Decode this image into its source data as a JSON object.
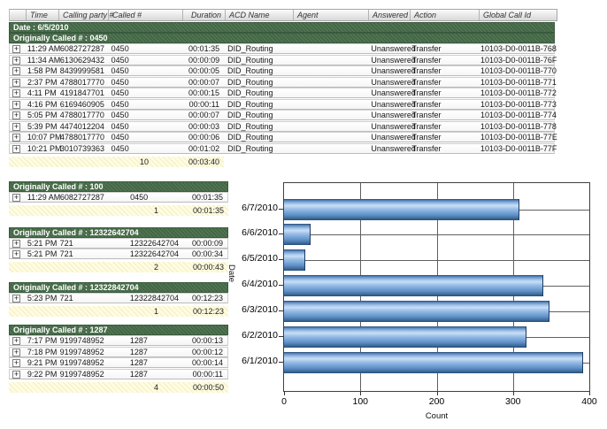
{
  "report": {
    "columns": [
      {
        "key": "expand",
        "label": ""
      },
      {
        "key": "time",
        "label": "Time"
      },
      {
        "key": "calling",
        "label": "Calling party #"
      },
      {
        "key": "called",
        "label": "Called #"
      },
      {
        "key": "duration",
        "label": "Duration"
      },
      {
        "key": "acd",
        "label": "ACD Name"
      },
      {
        "key": "agent",
        "label": "Agent"
      },
      {
        "key": "answered",
        "label": "Answered"
      },
      {
        "key": "action",
        "label": "Action"
      },
      {
        "key": "global",
        "label": "Global Call Id"
      }
    ],
    "date_header": "Date : 6/5/2010",
    "expand_glyph": "+",
    "groups": [
      {
        "header": "Originally Called # : 0450",
        "layout": "wide",
        "rows": [
          [
            "11:29 AM",
            "6082727287",
            "0450",
            "00:01:35",
            "DID_Routing",
            "",
            "Unanswered",
            "Transfer",
            "10103-D0-0011B-768"
          ],
          [
            "11:34 AM",
            "6130629432",
            "0450",
            "00:00:09",
            "DID_Routing",
            "",
            "Unanswered",
            "Transfer",
            "10103-D0-0011B-76F"
          ],
          [
            "1:58 PM",
            "8439999581",
            "0450",
            "00:00:05",
            "DID_Routing",
            "",
            "Unanswered",
            "Transfer",
            "10103-D0-0011B-770"
          ],
          [
            "2:37 PM",
            "4788017770",
            "0450",
            "00:00:07",
            "DID_Routing",
            "",
            "Unanswered",
            "Transfer",
            "10103-D0-0011B-771"
          ],
          [
            "4:11 PM",
            "4191847701",
            "0450",
            "00:00:15",
            "DID_Routing",
            "",
            "Unanswered",
            "Transfer",
            "10103-D0-0011B-772"
          ],
          [
            "4:16 PM",
            "6169460905",
            "0450",
            "00:00:11",
            "DID_Routing",
            "",
            "Unanswered",
            "Transfer",
            "10103-D0-0011B-773"
          ],
          [
            "5:05 PM",
            "4788017770",
            "0450",
            "00:00:07",
            "DID_Routing",
            "",
            "Unanswered",
            "Transfer",
            "10103-D0-0011B-774"
          ],
          [
            "5:39 PM",
            "4474012204",
            "0450",
            "00:00:03",
            "DID_Routing",
            "",
            "Unanswered",
            "Transfer",
            "10103-D0-0011B-778"
          ],
          [
            "10:07 PM",
            "4788017770",
            "0450",
            "00:00:06",
            "DID_Routing",
            "",
            "Unanswered",
            "Transfer",
            "10103-D0-0011B-77E"
          ],
          [
            "10:21 PM",
            "3010739363",
            "0450",
            "00:01:02",
            "DID_Routing",
            "",
            "Unanswered",
            "Transfer",
            "10103-D0-0011B-77F"
          ]
        ],
        "summary": {
          "count": "10",
          "duration": "00:03:40"
        }
      },
      {
        "header": "Originally Called # : 100",
        "layout": "narrow",
        "rows": [
          [
            "11:29 AM",
            "6082727287",
            "0450",
            "00:01:35"
          ]
        ],
        "summary": {
          "count": "1",
          "duration": "00:01:35"
        }
      },
      {
        "header": "Originally Called # : 12322642704",
        "layout": "narrow",
        "rows": [
          [
            "5:21 PM",
            "721",
            "12322642704",
            "00:00:09"
          ],
          [
            "5:21 PM",
            "721",
            "12322642704",
            "00:00:34"
          ]
        ],
        "summary": {
          "count": "2",
          "duration": "00:00:43"
        }
      },
      {
        "header": "Originally Called # : 12322842704",
        "layout": "narrow",
        "rows": [
          [
            "5:23 PM",
            "721",
            "12322842704",
            "00:12:23"
          ]
        ],
        "summary": {
          "count": "1",
          "duration": "00:12:23"
        }
      },
      {
        "header": "Originally Called # : 1287",
        "layout": "narrow",
        "rows": [
          [
            "7:17 PM",
            "9199748952",
            "1287",
            "00:00:13"
          ],
          [
            "7:18 PM",
            "9199748952",
            "1287",
            "00:00:12"
          ],
          [
            "9:21 PM",
            "9199748952",
            "1287",
            "00:00:14"
          ],
          [
            "9:22 PM",
            "9199748952",
            "1287",
            "00:00:11"
          ]
        ],
        "summary": {
          "count": "4",
          "duration": "00:00:50"
        }
      }
    ]
  },
  "chart_data": {
    "type": "bar",
    "orientation": "horizontal",
    "title": "",
    "xlabel": "Count",
    "ylabel": "Date",
    "categories": [
      "6/7/2010",
      "6/6/2010",
      "6/5/2010",
      "6/4/2010",
      "6/3/2010",
      "6/2/2010",
      "6/1/2010"
    ],
    "values": [
      308,
      35,
      28,
      340,
      348,
      318,
      392
    ],
    "xlim": [
      0,
      400
    ],
    "xticks": [
      0,
      100,
      200,
      300,
      400
    ],
    "grid": true,
    "legend": "none",
    "bar_color": "#6f9fd8"
  }
}
